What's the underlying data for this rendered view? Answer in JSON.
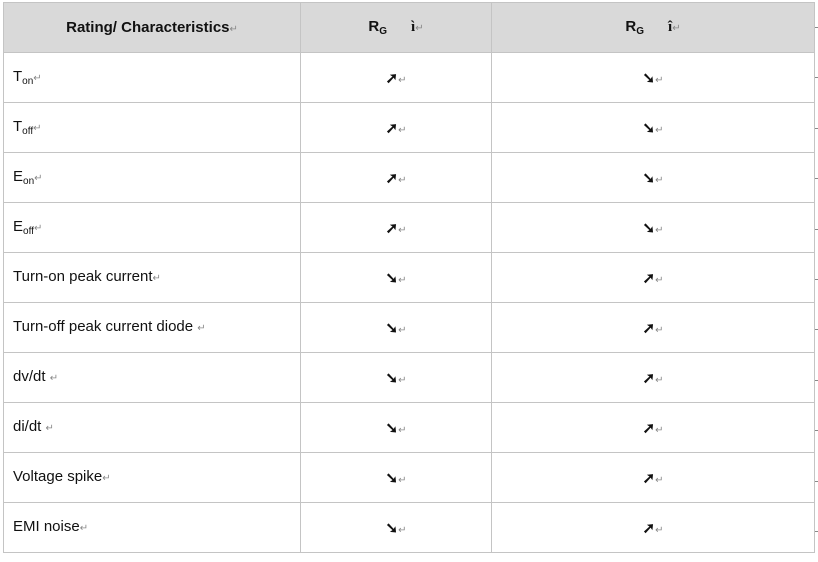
{
  "header": {
    "col1": "Rating/ Characteristics",
    "col2_main": "R",
    "col2_sub": "G",
    "col2_symbol": "ì",
    "col3_main": "R",
    "col3_sub": "G",
    "col3_symbol": "î"
  },
  "return_mark": "↵",
  "arrows": {
    "up": "➚",
    "down": "➘"
  },
  "rows": [
    {
      "main": "T",
      "sub": "on",
      "col2": "➚",
      "col3": "➘"
    },
    {
      "main": "T",
      "sub": "off",
      "col2": "➚",
      "col3": "➘"
    },
    {
      "main": "E",
      "sub": "on",
      "col2": "➚",
      "col3": "➘"
    },
    {
      "main": "E",
      "sub": "off",
      "col2": "➚",
      "col3": "➘"
    },
    {
      "main": "Turn-on peak current",
      "sub": "",
      "col2": "➘",
      "col3": "➚"
    },
    {
      "main": "Turn-off peak current diode ",
      "sub": "",
      "col2": "➘",
      "col3": "➚"
    },
    {
      "main": "dv/dt ",
      "sub": "",
      "col2": "➘",
      "col3": "➚"
    },
    {
      "main": "di/dt ",
      "sub": "",
      "col2": "➘",
      "col3": "➚"
    },
    {
      "main": "Voltage spike",
      "sub": "",
      "col2": "➘",
      "col3": "➚"
    },
    {
      "main": "EMI noise",
      "sub": "",
      "col2": "➘",
      "col3": "➚"
    }
  ]
}
